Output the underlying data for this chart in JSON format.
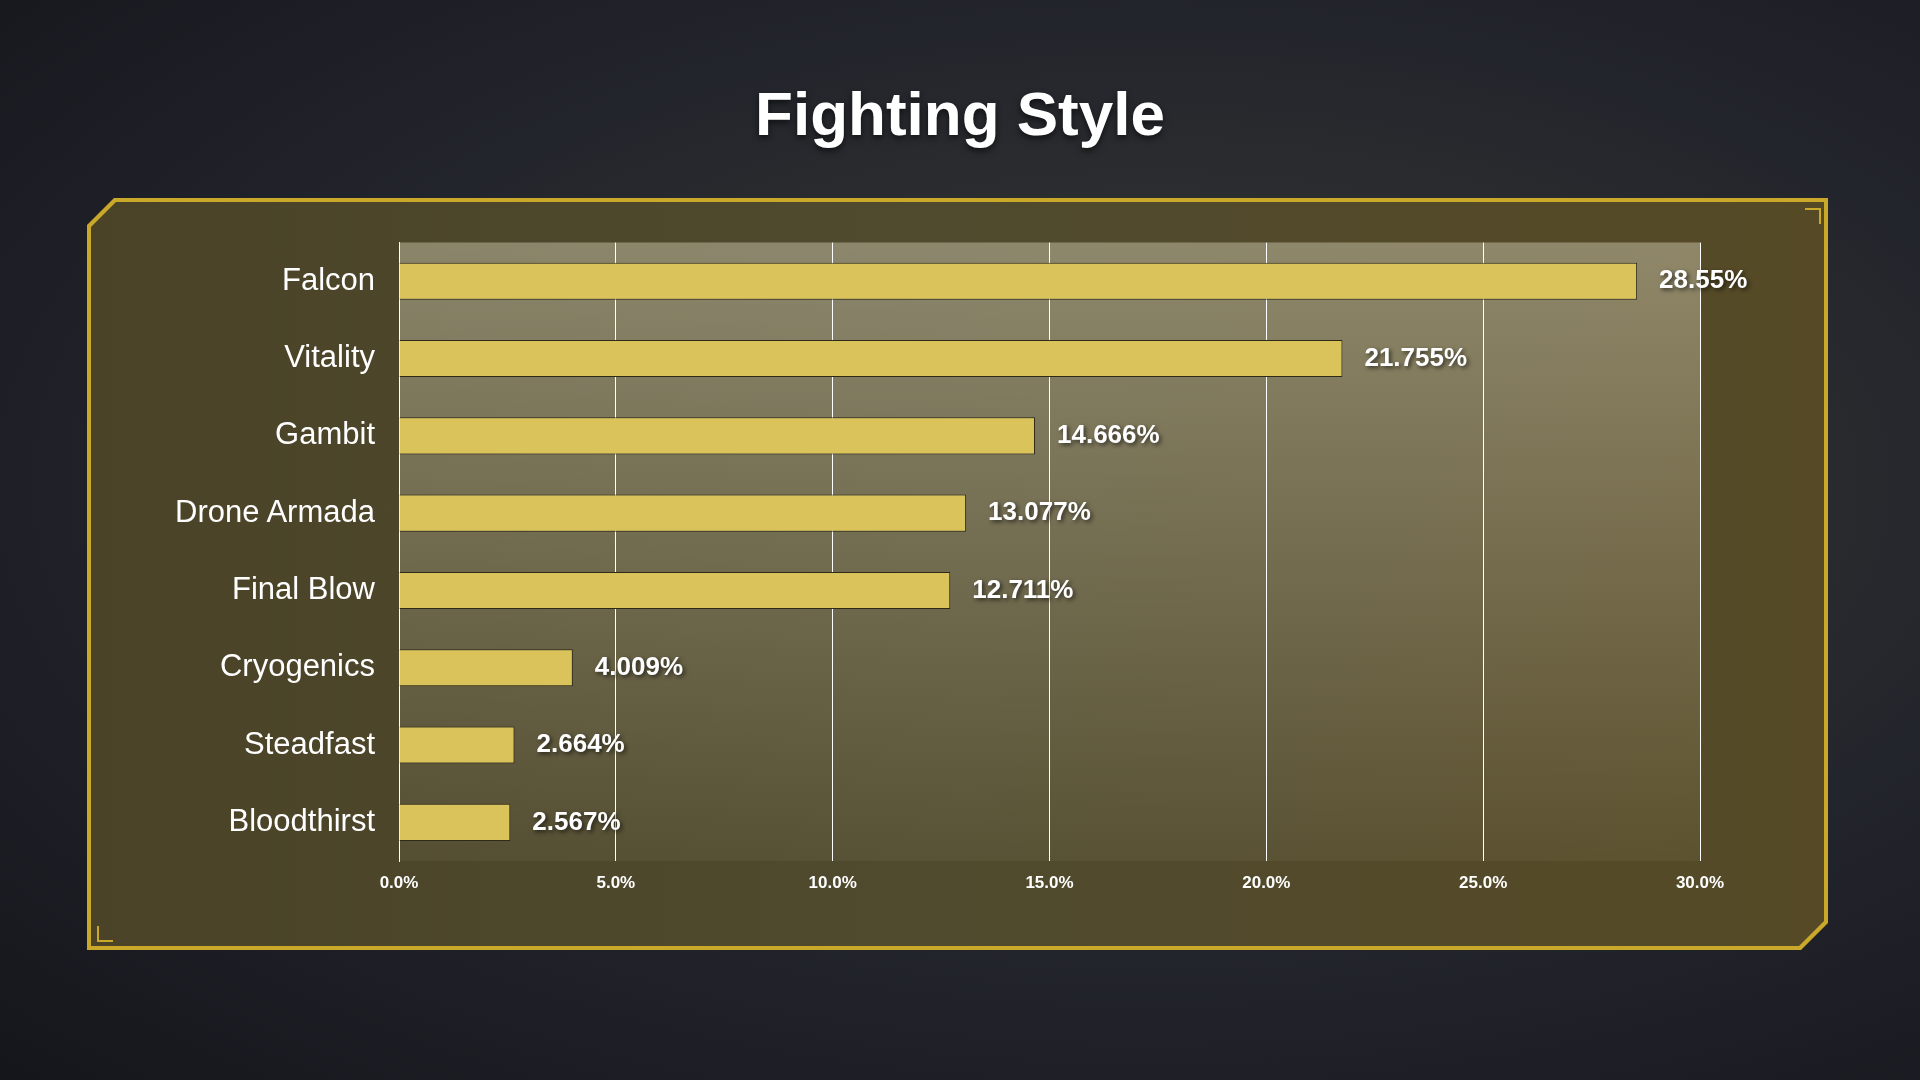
{
  "chart_data": {
    "type": "bar",
    "orientation": "horizontal",
    "title": "Fighting Style",
    "categories": [
      "Falcon",
      "Vitality",
      "Gambit",
      "Drone Armada",
      "Final Blow",
      "Cryogenics",
      "Steadfast",
      "Bloodthirst"
    ],
    "values": [
      28.55,
      21.755,
      14.666,
      13.077,
      12.711,
      4.009,
      2.664,
      2.567
    ],
    "value_labels": [
      "28.55%",
      "21.755%",
      "14.666%",
      "13.077%",
      "12.711%",
      "4.009%",
      "2.664%",
      "2.567%"
    ],
    "color": "#d9c35a",
    "xlim": [
      0,
      30
    ],
    "xticks": [
      {
        "value": 0,
        "label": "0.0%"
      },
      {
        "value": 5,
        "label": "5.0%"
      },
      {
        "value": 10,
        "label": "10.0%"
      },
      {
        "value": 15,
        "label": "15.0%"
      },
      {
        "value": 20,
        "label": "20.0%"
      },
      {
        "value": 25,
        "label": "25.0%"
      },
      {
        "value": 30,
        "label": "30.0%"
      }
    ],
    "grid": "x"
  }
}
